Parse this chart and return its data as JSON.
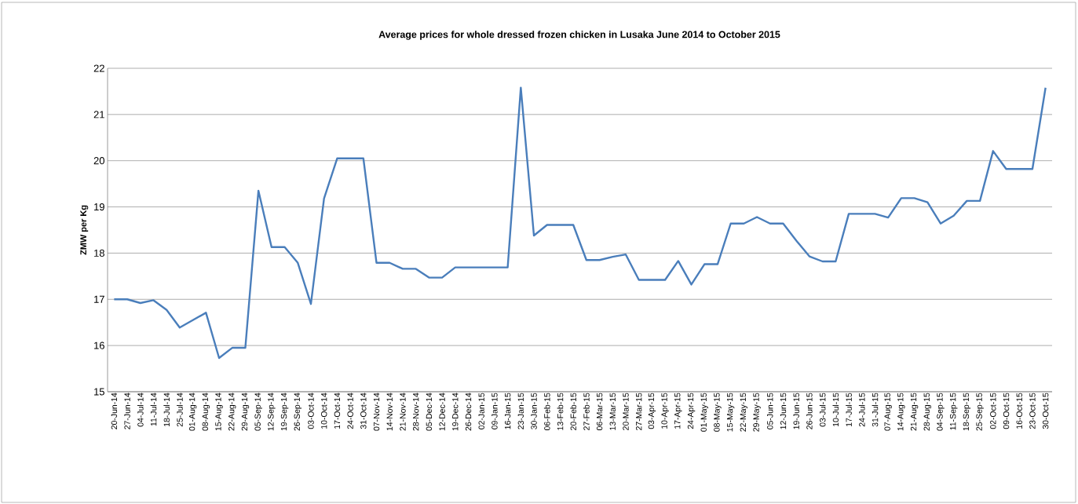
{
  "chart_data": {
    "type": "line",
    "title": "Average prices for whole dressed frozen chicken in Lusaka June 2014  to October 2015",
    "ylabel": "ZMW per Kg",
    "categories": [
      "20-Jun-14",
      "27-Jun-14",
      "04-Jul-14",
      "11-Jul-14",
      "18-Jul-14",
      "25-Jul-14",
      "01-Aug-14",
      "08-Aug-14",
      "15-Aug-14",
      "22-Aug-14",
      "29-Aug-14",
      "05-Sep-14",
      "12-Sep-14",
      "19-Sep-14",
      "26-Sep-14",
      "03-Oct-14",
      "10-Oct-14",
      "17-Oct-14",
      "24-Oct-14",
      "31-Oct-14",
      "07-Nov-14",
      "14-Nov-14",
      "21-Nov-14",
      "28-Nov-14",
      "05-Dec-14",
      "12-Dec-14",
      "19-Dec-14",
      "26-Dec-14",
      "02-Jan-15",
      "09-Jan-15",
      "16-Jan-15",
      "23-Jan-15",
      "30-Jan-15",
      "06-Feb-15",
      "13-Feb-15",
      "20-Feb-15",
      "27-Feb-15",
      "06-Mar-15",
      "13-Mar-15",
      "20-Mar-15",
      "27-Mar-15",
      "03-Apr-15",
      "10-Apr-15",
      "17-Apr-15",
      "24-Apr-15",
      "01-May-15",
      "08-May-15",
      "15-May-15",
      "22-May-15",
      "29-May-15",
      "05-Jun-15",
      "12-Jun-15",
      "19-Jun-15",
      "26-Jun-15",
      "03-Jul-15",
      "10-Jul-15",
      "17-Jul-15",
      "24-Jul-15",
      "31-Jul-15",
      "07-Aug-15",
      "14-Aug-15",
      "21-Aug-15",
      "28-Aug-15",
      "04-Sep-15",
      "11-Sep-15",
      "18-Sep-15",
      "25-Sep-15",
      "02-Oct-15",
      "09-Oct-15",
      "16-Oct-15",
      "23-Oct-15",
      "30-Oct-15"
    ],
    "series": [
      {
        "color": "#4a7ebb",
        "values": [
          17.0,
          17.0,
          16.92,
          16.98,
          16.77,
          16.39,
          16.55,
          16.71,
          15.73,
          15.95,
          15.95,
          19.35,
          18.13,
          18.13,
          17.79,
          16.9,
          19.18,
          20.05,
          20.05,
          20.05,
          17.79,
          17.79,
          17.66,
          17.66,
          17.47,
          17.47,
          17.69,
          17.69,
          17.69,
          17.69,
          17.69,
          21.58,
          18.38,
          18.61,
          18.61,
          18.61,
          17.85,
          17.85,
          17.92,
          17.97,
          17.42,
          17.42,
          17.42,
          17.83,
          17.32,
          17.76,
          17.76,
          18.64,
          18.64,
          18.78,
          18.64,
          18.64,
          18.27,
          17.93,
          17.82,
          17.82,
          18.85,
          18.85,
          18.85,
          18.77,
          19.19,
          19.19,
          19.1,
          18.64,
          18.81,
          19.13,
          19.13,
          20.21,
          19.82,
          19.82,
          19.82,
          21.58
        ]
      }
    ],
    "ylim": [
      15,
      22
    ],
    "yticks": [
      15,
      16,
      17,
      18,
      19,
      20,
      21,
      22
    ],
    "grid": "y"
  }
}
